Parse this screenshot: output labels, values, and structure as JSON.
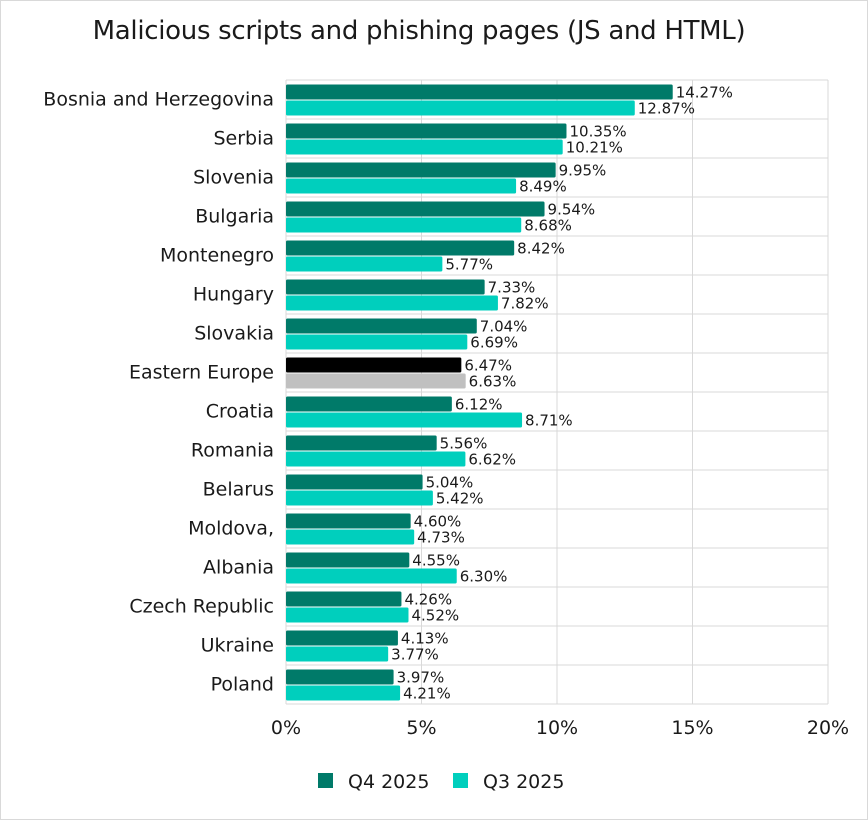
{
  "chart_data": {
    "type": "bar",
    "orientation": "horizontal",
    "title": "Malicious scripts and phishing pages (JS and HTML)",
    "categories": [
      "Bosnia and Herzegovina",
      "Serbia",
      "Slovenia",
      "Bulgaria",
      "Montenegro",
      "Hungary",
      "Slovakia",
      "Eastern Europe",
      "Croatia",
      "Romania",
      "Belarus",
      "Moldova,",
      "Albania",
      "Czech Republic",
      "Ukraine",
      "Poland"
    ],
    "series": [
      {
        "name": "Q4 2025",
        "color": "#007a69",
        "values": [
          14.27,
          10.35,
          9.95,
          9.54,
          8.42,
          7.33,
          7.04,
          6.47,
          6.12,
          5.56,
          5.04,
          4.6,
          4.55,
          4.26,
          4.13,
          3.97
        ],
        "labels": [
          "14.27%",
          "10.35%",
          "9.95%",
          "9.54%",
          "8.42%",
          "7.33%",
          "7.04%",
          "6.47%",
          "6.12%",
          "5.56%",
          "5.04%",
          "4.60%",
          "4.55%",
          "4.26%",
          "4.13%",
          "3.97%"
        ]
      },
      {
        "name": "Q3 2025",
        "color": "#00cfbd",
        "values": [
          12.87,
          10.21,
          8.49,
          8.68,
          5.77,
          7.82,
          6.69,
          6.63,
          8.71,
          6.62,
          5.42,
          4.73,
          6.3,
          4.52,
          3.77,
          4.21
        ],
        "labels": [
          "12.87%",
          "10.21%",
          "8.49%",
          "8.68%",
          "5.77%",
          "7.82%",
          "6.69%",
          "6.63%",
          "8.71%",
          "6.62%",
          "5.42%",
          "4.73%",
          "6.30%",
          "4.52%",
          "3.77%",
          "4.21%"
        ]
      }
    ],
    "highlight": {
      "category": "Eastern Europe",
      "colors": [
        "#000000",
        "#c0c0c0"
      ]
    },
    "xlim": [
      0,
      20
    ],
    "xticks": [
      0,
      5,
      10,
      15,
      20
    ],
    "xtick_labels": [
      "0%",
      "5%",
      "10%",
      "15%",
      "20%"
    ],
    "xlabel": "",
    "ylabel": "",
    "grid": true,
    "legend_position": "bottom"
  }
}
